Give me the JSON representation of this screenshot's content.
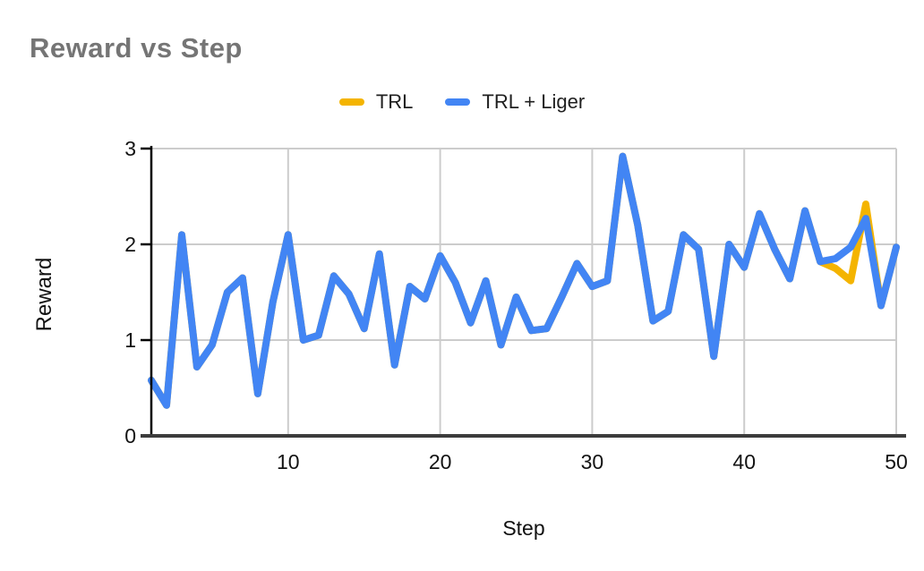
{
  "title": "Reward vs Step",
  "legend": [
    {
      "label": "TRL",
      "color": "#F4B400"
    },
    {
      "label": "TRL + Liger",
      "color": "#4285F4"
    }
  ],
  "chart_data": {
    "type": "line",
    "title": "Reward vs Step",
    "xlabel": "Step",
    "ylabel": "Reward",
    "xlim": [
      1,
      50
    ],
    "ylim": [
      0,
      3
    ],
    "x_ticks": [
      10,
      20,
      30,
      40,
      50
    ],
    "y_ticks": [
      0,
      1,
      2,
      3
    ],
    "grid": true,
    "legend_position": "top-center",
    "gridline_color": "#cccccc",
    "axis_color": "#000000",
    "line_width": 8,
    "x": [
      1,
      2,
      3,
      4,
      5,
      6,
      7,
      8,
      9,
      10,
      11,
      12,
      13,
      14,
      15,
      16,
      17,
      18,
      19,
      20,
      21,
      22,
      23,
      24,
      25,
      26,
      27,
      28,
      29,
      30,
      31,
      32,
      33,
      34,
      35,
      36,
      37,
      38,
      39,
      40,
      41,
      42,
      43,
      44,
      45,
      46,
      47,
      48,
      49,
      50
    ],
    "series": [
      {
        "name": "TRL",
        "color": "#F4B400",
        "values": [
          0.58,
          0.32,
          2.1,
          0.72,
          0.95,
          1.5,
          1.65,
          0.44,
          1.4,
          2.1,
          1.0,
          1.05,
          1.67,
          1.48,
          1.12,
          1.9,
          0.74,
          1.56,
          1.43,
          1.88,
          1.6,
          1.18,
          1.62,
          0.95,
          1.45,
          1.1,
          1.12,
          1.45,
          1.8,
          1.56,
          1.62,
          2.92,
          2.2,
          1.2,
          1.3,
          2.1,
          1.95,
          0.83,
          2.0,
          1.76,
          2.32,
          1.95,
          1.64,
          2.35,
          1.82,
          1.75,
          1.62,
          2.42,
          1.36,
          1.97
        ]
      },
      {
        "name": "TRL + Liger",
        "color": "#4285F4",
        "values": [
          0.58,
          0.32,
          2.1,
          0.72,
          0.95,
          1.5,
          1.65,
          0.44,
          1.4,
          2.1,
          1.0,
          1.05,
          1.67,
          1.48,
          1.12,
          1.9,
          0.74,
          1.56,
          1.43,
          1.88,
          1.6,
          1.18,
          1.62,
          0.95,
          1.45,
          1.1,
          1.12,
          1.45,
          1.8,
          1.56,
          1.62,
          2.92,
          2.2,
          1.2,
          1.3,
          2.1,
          1.95,
          0.83,
          2.0,
          1.76,
          2.32,
          1.95,
          1.64,
          2.35,
          1.82,
          1.85,
          1.97,
          2.27,
          1.36,
          1.97
        ]
      }
    ]
  }
}
